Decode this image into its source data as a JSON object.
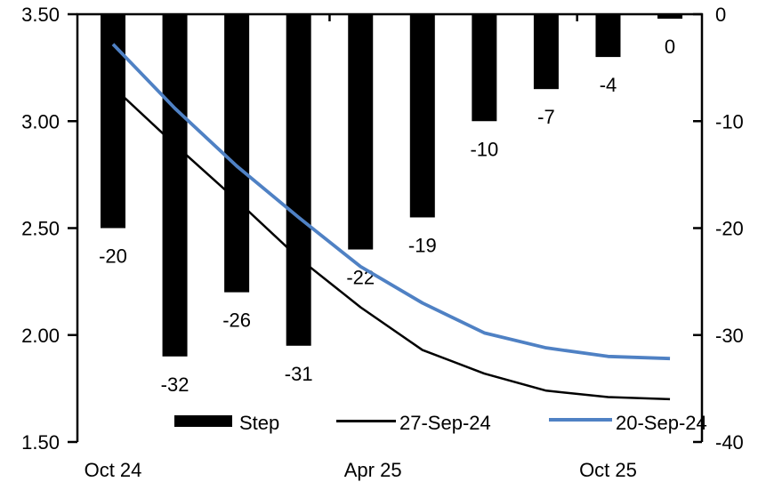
{
  "chart_data": {
    "type": "combo_bar_line",
    "title": "",
    "n_categories": 10,
    "background_color": "#ffffff",
    "x_axis": {
      "labels": [
        {
          "text": "Oct 24",
          "at_category": 0
        },
        {
          "text": "Apr 25",
          "at_category": 4.2
        },
        {
          "text": "Oct 25",
          "at_category": 8
        }
      ],
      "boundary_ticks_at_category": [
        3.5,
        7.5
      ]
    },
    "left_axis": {
      "min": 1.5,
      "max": 3.5,
      "ticks": [
        {
          "value": 3.5,
          "label": "3.50"
        },
        {
          "value": 3.0,
          "label": "3.00"
        },
        {
          "value": 2.5,
          "label": "2.50"
        },
        {
          "value": 2.0,
          "label": "2.00"
        },
        {
          "value": 1.5,
          "label": "1.50"
        }
      ]
    },
    "right_axis": {
      "min": -40,
      "max": 0,
      "ticks": [
        {
          "value": 0,
          "label": "0"
        },
        {
          "value": -10,
          "label": "-10"
        },
        {
          "value": -20,
          "label": "-20"
        },
        {
          "value": -30,
          "label": "-30"
        },
        {
          "value": -40,
          "label": "-40"
        }
      ]
    },
    "bars": {
      "name": "Step",
      "axis": "right",
      "color": "#000000",
      "values": [
        -20,
        -32,
        -26,
        -31,
        -22,
        -19,
        -10,
        -7,
        -4,
        0
      ],
      "data_labels": [
        "-20",
        "-32",
        "-26",
        "-31",
        "-22",
        "-19",
        "-10",
        "-7",
        "-4",
        "0"
      ]
    },
    "lines": [
      {
        "name": "27-Sep-24",
        "axis": "left",
        "color": "#000000",
        "stroke_width": 2.5,
        "values": [
          3.16,
          2.89,
          2.63,
          2.36,
          2.13,
          1.93,
          1.82,
          1.74,
          1.71,
          1.7
        ]
      },
      {
        "name": "20-Sep-24",
        "axis": "left",
        "color": "#4f81c4",
        "stroke_width": 3.8,
        "values": [
          3.36,
          3.06,
          2.79,
          2.55,
          2.32,
          2.15,
          2.01,
          1.94,
          1.9,
          1.89
        ]
      }
    ],
    "legend": [
      {
        "type": "bar",
        "label": "Step",
        "color": "#000000"
      },
      {
        "type": "line",
        "label": "27-Sep-24",
        "color": "#000000"
      },
      {
        "type": "line",
        "label": "20-Sep-24",
        "color": "#4f81c4"
      }
    ]
  }
}
